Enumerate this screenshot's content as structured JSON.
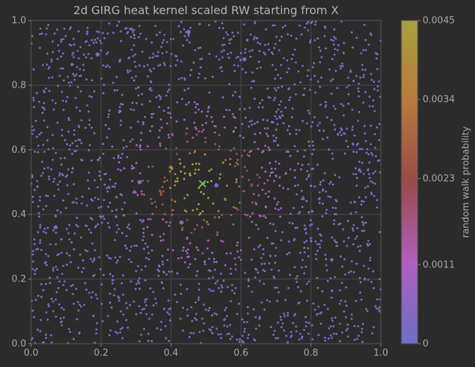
{
  "chart_data": {
    "type": "scatter",
    "title": "2d GIRG heat kernel scaled RW starting from X",
    "xlabel": "",
    "ylabel": "",
    "xlim": [
      0.0,
      1.0
    ],
    "ylim": [
      0.0,
      1.0
    ],
    "x_ticks": [
      "0.0",
      "0.2",
      "0.4",
      "0.6",
      "0.8",
      "1.0"
    ],
    "y_ticks": [
      "0.0",
      "0.2",
      "0.4",
      "0.6",
      "0.8",
      "1.0"
    ],
    "grid": true,
    "start_marker": {
      "x": 0.49,
      "y": 0.495,
      "label": "X",
      "color": "#6fbf5a"
    },
    "colorbar": {
      "label": "random walk probability",
      "range": [
        0,
        0.0045
      ],
      "ticks": [
        "0.0045",
        "0.0034",
        "0.0023",
        "0.0011",
        "0"
      ],
      "tick_values": [
        0.0045,
        0.0034,
        0.0023,
        0.0011,
        0
      ],
      "colors": [
        "#6c6fc4",
        "#b05fc2",
        "#9b4a48",
        "#b97a3a",
        "#a8a040"
      ]
    },
    "point_count": 2000,
    "distribution": "uniform positions on the unit square; probability peaks near the start point X and decays with distance",
    "highlight_points": [
      {
        "x": 0.19,
        "y": 0.895,
        "value": 0.0001
      },
      {
        "x": 0.53,
        "y": 0.49,
        "value": 0.0002
      },
      {
        "x": 0.31,
        "y": 0.5,
        "value": 0.0003
      },
      {
        "x": 0.07,
        "y": 0.36,
        "value": 0.0002
      },
      {
        "x": 0.43,
        "y": 0.375,
        "value": 0.0003
      },
      {
        "x": 0.61,
        "y": 0.88,
        "value": 0.0002
      },
      {
        "x": 0.45,
        "y": 0.965,
        "value": 0.0001
      }
    ]
  }
}
